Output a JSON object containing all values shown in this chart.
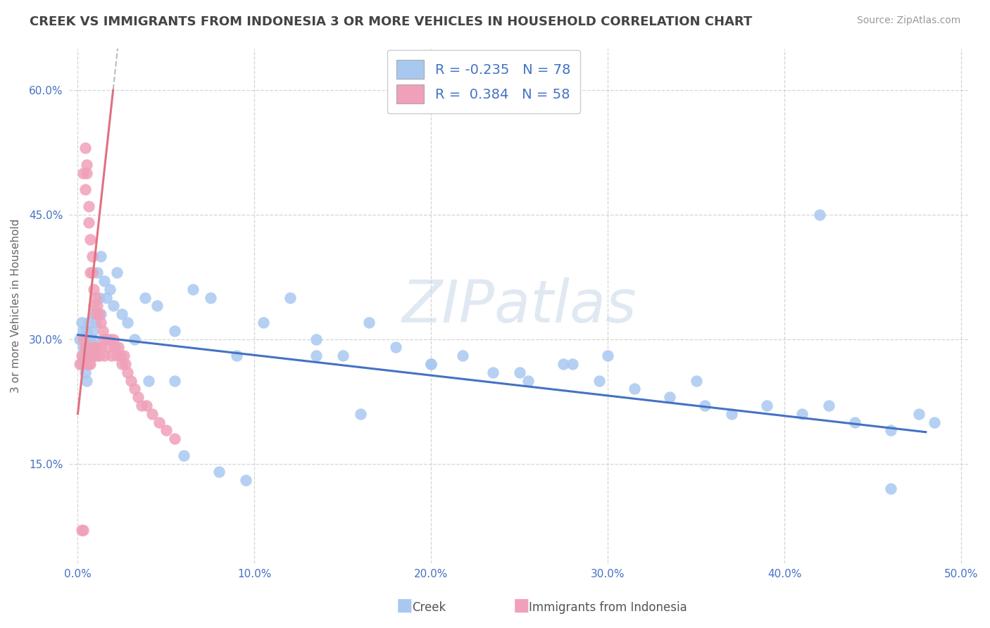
{
  "title": "CREEK VS IMMIGRANTS FROM INDONESIA 3 OR MORE VEHICLES IN HOUSEHOLD CORRELATION CHART",
  "source": "Source: ZipAtlas.com",
  "ylabel": "3 or more Vehicles in Household",
  "xlim": [
    -0.005,
    0.505
  ],
  "ylim": [
    0.03,
    0.65
  ],
  "xticks": [
    0.0,
    0.1,
    0.2,
    0.3,
    0.4,
    0.5
  ],
  "yticks": [
    0.15,
    0.3,
    0.45,
    0.6
  ],
  "xticklabels": [
    "0.0%",
    "10.0%",
    "20.0%",
    "30.0%",
    "40.0%",
    "50.0%"
  ],
  "yticklabels": [
    "15.0%",
    "30.0%",
    "45.0%",
    "60.0%"
  ],
  "creek_color": "#a8c8f0",
  "indonesia_color": "#f0a0b8",
  "creek_line_color": "#4472c4",
  "indonesia_line_color": "#e07080",
  "creek_R": -0.235,
  "creek_N": 78,
  "indonesia_R": 0.384,
  "indonesia_N": 58,
  "watermark": "ZIPatlas",
  "background_color": "#ffffff",
  "grid_color": "#cccccc",
  "tick_color": "#4472c4",
  "title_color": "#444444",
  "creek_x": [
    0.001,
    0.002,
    0.002,
    0.003,
    0.003,
    0.003,
    0.004,
    0.004,
    0.004,
    0.005,
    0.005,
    0.005,
    0.006,
    0.006,
    0.006,
    0.007,
    0.007,
    0.008,
    0.008,
    0.009,
    0.009,
    0.01,
    0.01,
    0.011,
    0.012,
    0.013,
    0.013,
    0.015,
    0.016,
    0.018,
    0.02,
    0.022,
    0.025,
    0.028,
    0.032,
    0.038,
    0.045,
    0.055,
    0.065,
    0.075,
    0.09,
    0.105,
    0.12,
    0.135,
    0.15,
    0.165,
    0.18,
    0.2,
    0.218,
    0.235,
    0.255,
    0.275,
    0.295,
    0.315,
    0.335,
    0.355,
    0.37,
    0.39,
    0.41,
    0.425,
    0.44,
    0.46,
    0.476,
    0.135,
    0.25,
    0.3,
    0.35,
    0.2,
    0.16,
    0.06,
    0.08,
    0.095,
    0.04,
    0.055,
    0.28,
    0.42,
    0.46,
    0.485
  ],
  "creek_y": [
    0.3,
    0.27,
    0.32,
    0.29,
    0.31,
    0.28,
    0.3,
    0.26,
    0.29,
    0.31,
    0.28,
    0.25,
    0.3,
    0.27,
    0.32,
    0.29,
    0.3,
    0.31,
    0.28,
    0.3,
    0.33,
    0.29,
    0.32,
    0.38,
    0.35,
    0.33,
    0.4,
    0.37,
    0.35,
    0.36,
    0.34,
    0.38,
    0.33,
    0.32,
    0.3,
    0.35,
    0.34,
    0.31,
    0.36,
    0.35,
    0.28,
    0.32,
    0.35,
    0.3,
    0.28,
    0.32,
    0.29,
    0.27,
    0.28,
    0.26,
    0.25,
    0.27,
    0.25,
    0.24,
    0.23,
    0.22,
    0.21,
    0.22,
    0.21,
    0.22,
    0.2,
    0.19,
    0.21,
    0.28,
    0.26,
    0.28,
    0.25,
    0.27,
    0.21,
    0.16,
    0.14,
    0.13,
    0.25,
    0.25,
    0.27,
    0.45,
    0.12,
    0.2
  ],
  "indonesia_x": [
    0.001,
    0.002,
    0.003,
    0.003,
    0.004,
    0.004,
    0.004,
    0.005,
    0.005,
    0.005,
    0.006,
    0.006,
    0.006,
    0.007,
    0.007,
    0.007,
    0.008,
    0.008,
    0.008,
    0.009,
    0.009,
    0.009,
    0.01,
    0.01,
    0.01,
    0.011,
    0.011,
    0.012,
    0.012,
    0.013,
    0.013,
    0.014,
    0.015,
    0.015,
    0.016,
    0.017,
    0.018,
    0.019,
    0.02,
    0.021,
    0.022,
    0.023,
    0.024,
    0.025,
    0.026,
    0.027,
    0.028,
    0.03,
    0.032,
    0.034,
    0.036,
    0.039,
    0.042,
    0.046,
    0.05,
    0.055,
    0.002,
    0.003
  ],
  "indonesia_y": [
    0.27,
    0.28,
    0.3,
    0.5,
    0.53,
    0.48,
    0.29,
    0.5,
    0.51,
    0.27,
    0.46,
    0.44,
    0.28,
    0.42,
    0.38,
    0.27,
    0.4,
    0.38,
    0.29,
    0.36,
    0.34,
    0.28,
    0.35,
    0.33,
    0.29,
    0.34,
    0.28,
    0.33,
    0.28,
    0.32,
    0.29,
    0.31,
    0.3,
    0.28,
    0.3,
    0.29,
    0.3,
    0.28,
    0.3,
    0.29,
    0.28,
    0.29,
    0.28,
    0.27,
    0.28,
    0.27,
    0.26,
    0.25,
    0.24,
    0.23,
    0.22,
    0.22,
    0.21,
    0.2,
    0.19,
    0.18,
    0.07,
    0.07
  ],
  "indo_line_x0": 0.0,
  "indo_line_y0": 0.21,
  "indo_line_x1": 0.02,
  "indo_line_y1": 0.6,
  "creek_line_x0": 0.0,
  "creek_line_y0": 0.305,
  "creek_line_x1": 0.48,
  "creek_line_y1": 0.188
}
